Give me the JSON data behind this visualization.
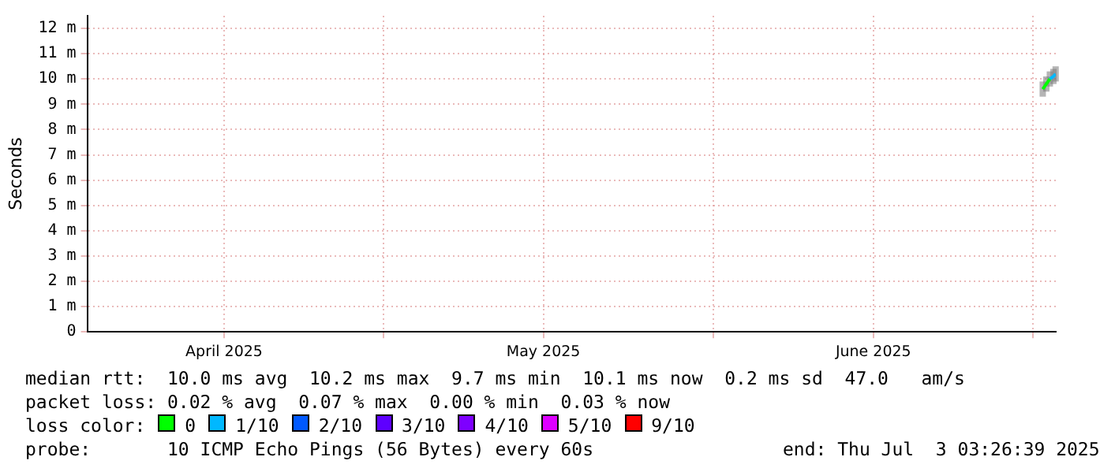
{
  "chart_data": {
    "type": "line",
    "ylabel": "Seconds",
    "legend_title": "loss color:",
    "legend": "bottom",
    "grid": true,
    "xlim": [
      "2025-04-03T03:26",
      "2025-07-03T03:26"
    ],
    "xticks": [
      {
        "value": "2025-04-16",
        "label": "April 2025"
      },
      {
        "value": "2025-05-01",
        "label": null
      },
      {
        "value": "2025-05-16",
        "label": "May 2025"
      },
      {
        "value": "2025-06-01",
        "label": null
      },
      {
        "value": "2025-06-16",
        "label": "June 2025"
      },
      {
        "value": "2025-07-01",
        "label": null
      }
    ],
    "ylim": [
      0,
      12.5
    ],
    "yticks": [
      0,
      {
        "value": 1,
        "label": "1 m"
      },
      {
        "value": 2,
        "label": "2 m"
      },
      {
        "value": 3,
        "label": "3 m"
      },
      {
        "value": 4,
        "label": "4 m"
      },
      {
        "value": 5,
        "label": "5 m"
      },
      {
        "value": 6,
        "label": "6 m"
      },
      {
        "value": 7,
        "label": "7 m"
      },
      {
        "value": 8,
        "label": "8 m"
      },
      {
        "value": 9,
        "label": "9 m"
      },
      {
        "value": 10,
        "label": "10 m"
      },
      {
        "value": 11,
        "label": "11 m"
      },
      {
        "value": 12,
        "label": "12 m"
      }
    ],
    "x": [
      "2025-07-01T22:00",
      "2025-07-02T06:00",
      "2025-07-02T14:00",
      "2025-07-02T22:00",
      "2025-07-03T03:00"
    ],
    "series": [
      {
        "name": "0",
        "color": "#00ff00",
        "values": [
          9.6,
          9.8,
          10,
          null,
          null
        ],
        "lower": [
          9.3,
          9.5,
          9.7,
          null,
          null
        ],
        "upper": [
          9.9,
          10.1,
          10.3,
          null,
          null
        ]
      },
      {
        "name": "1/10",
        "color": "#00b8ff",
        "values": [
          null,
          null,
          10,
          10.1,
          10.2
        ],
        "lower": [
          null,
          null,
          null,
          9.8,
          9.9
        ],
        "upper": [
          null,
          null,
          null,
          10.4,
          10.5
        ]
      },
      {
        "name": "2/10",
        "color": "#0059ff",
        "values": [
          null,
          null,
          null,
          null,
          null
        ]
      },
      {
        "name": "3/10",
        "color": "#5e00ff",
        "values": [
          null,
          null,
          null,
          null,
          null
        ]
      },
      {
        "name": "4/10",
        "color": "#7e00ff",
        "values": [
          null,
          null,
          null,
          null,
          null
        ]
      },
      {
        "name": "5/10",
        "color": "#dd00ff",
        "values": [
          null,
          null,
          null,
          null,
          null
        ]
      },
      {
        "name": "9/10",
        "color": "#ff0000",
        "values": [
          null,
          null,
          null,
          null,
          null
        ]
      }
    ],
    "annotations": [
      "median rtt:  10.0 ms avg  10.2 ms max  9.7 ms min  10.1 ms now  0.2 ms sd  47.0   am/s",
      "packet loss: 0.02 % avg  0.07 % max  0.00 % min  0.03 % now",
      "probe:       10 ICMP Echo Pings (56 Bytes) every 60s",
      "end: Thu Jul  3 03:26:39 2025"
    ]
  }
}
